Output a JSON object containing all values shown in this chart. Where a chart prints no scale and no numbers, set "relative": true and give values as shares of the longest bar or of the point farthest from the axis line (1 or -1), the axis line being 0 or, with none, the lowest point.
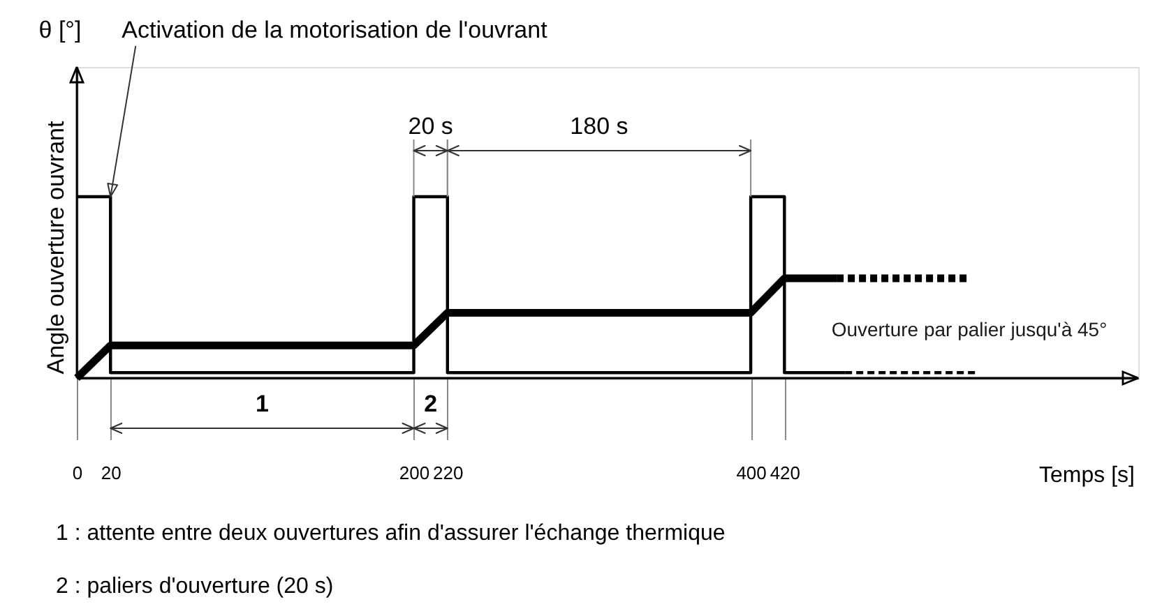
{
  "chart_data": {
    "type": "line",
    "relative": true,
    "xlabel": "Temps [s]",
    "ylabel": "Angle ouverture ouvrant",
    "series": [
      {
        "color": "#000000",
        "line_style": "solid",
        "x": [
          0,
          20,
          20,
          200,
          200,
          220,
          220,
          400,
          400,
          420,
          420,
          456
        ],
        "values": [
          1,
          1,
          0.03,
          0.03,
          1,
          1,
          0.03,
          0.03,
          1,
          1,
          0.03,
          0.03
        ]
      },
      {
        "color": "#000000",
        "line_style": "dotted",
        "x": [
          456,
          534
        ],
        "values": [
          0.03,
          0.03
        ]
      },
      {
        "color": "#000000",
        "line_style": "solid",
        "x": [
          0,
          20,
          200,
          220,
          400,
          420,
          451
        ],
        "values": [
          0,
          0.18,
          0.18,
          0.36,
          0.36,
          0.55,
          0.55
        ]
      },
      {
        "color": "#000000",
        "line_style": "dotted",
        "x": [
          451,
          529
        ],
        "values": [
          0.55,
          0.55
        ]
      }
    ],
    "xlim": [
      0,
      630
    ],
    "xticks": [
      0,
      20,
      200,
      220,
      400,
      420
    ],
    "tick_labels": "x",
    "annotations": [
      "θ [°]",
      {
        "text": "Activation de la motorisation de l'ouvrant",
        "x": 20,
        "y": 1
      },
      "20 s",
      "180 s",
      "1",
      "2",
      "Ouverture par palier jusqu'à 45°",
      "1 : attente entre deux ouvertures afin d'assurer l'échange thermique",
      "2 : paliers d'ouverture (20 s)"
    ]
  }
}
